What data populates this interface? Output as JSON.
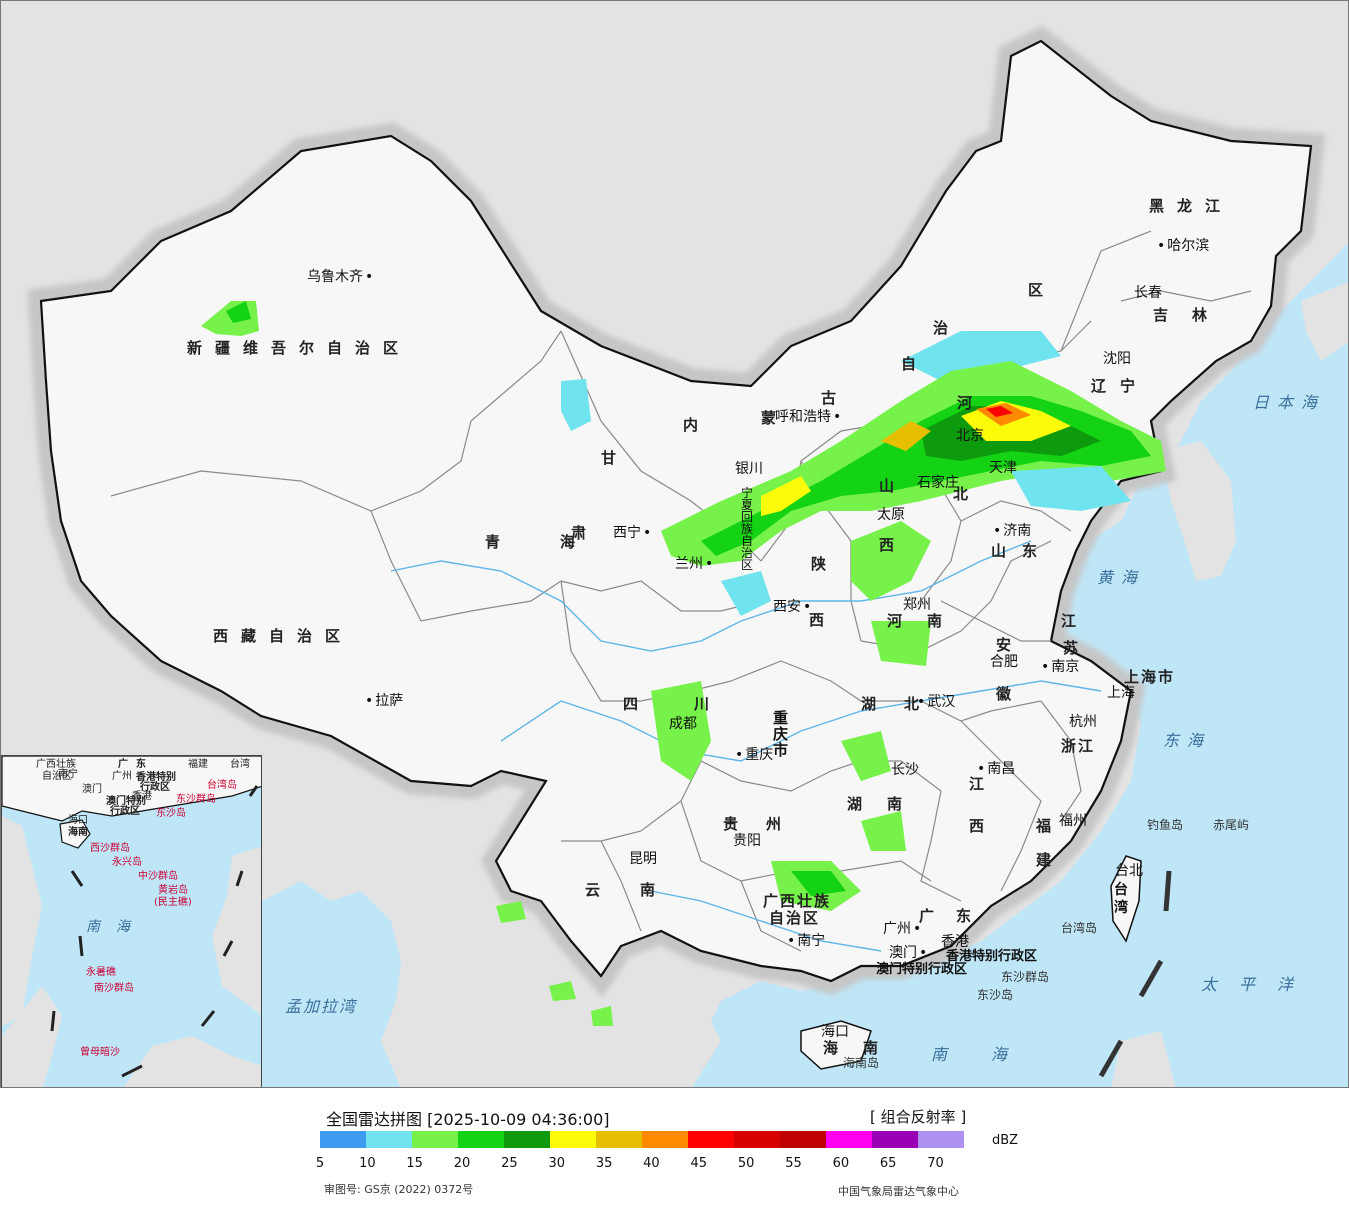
{
  "legend": {
    "title": "全国雷达拼图 [2025-10-09 04:36:00]",
    "product": "[ 组合反射率 ]",
    "unit": "dBZ",
    "approval": "审图号: GS京 (2022) 0372号",
    "credit": "中国气象局雷达气象中心",
    "ticks": [
      "5",
      "10",
      "15",
      "20",
      "25",
      "30",
      "35",
      "40",
      "45",
      "50",
      "55",
      "60",
      "65",
      "70"
    ],
    "colors": [
      "#3d9bef",
      "#6fe3ee",
      "#77f24a",
      "#14d214",
      "#0d9a0d",
      "#fcfc0a",
      "#e6c000",
      "#ff8a00",
      "#ff0000",
      "#d60000",
      "#c00000",
      "#ff00f0",
      "#9a00b4",
      "#ad90f0"
    ]
  },
  "colors": {
    "land": "#f7f7f7",
    "sea": "#bfe6f7",
    "outside": "#e3e3e3",
    "border": "#111111",
    "province": "#7f7f7f"
  },
  "provinces": {
    "xinjiang": "新疆维吾尔自治区",
    "xizang": "西藏自治区",
    "qinghai": "青海",
    "gansu": "甘",
    "su": "肃",
    "neimeng_nei": "内",
    "neimeng_meng": "蒙",
    "neimeng_gu": "古",
    "neimeng_zi": "自",
    "neimeng_zhi": "治",
    "neimeng_qu": "区",
    "heilongjiang": "黑龙江",
    "jilin": "吉林",
    "liaoning": "辽宁",
    "ningxia": "宁夏回族自治区",
    "shaanxi_shan": "陕",
    "shaanxi_xi": "西",
    "shanxi_shan": "山",
    "shanxi_xi": "西",
    "hebei_he": "河",
    "hebei_bei": "北",
    "beijing": "北京",
    "tianjin": "天津",
    "shandong": "山东",
    "henan_he": "河",
    "henan_nan": "南",
    "jiangsu_jiang": "江",
    "jiangsu_su": "苏",
    "anhui_an": "安",
    "anhui_hui": "徽",
    "shanghai": "上海市",
    "zhejiang": "浙江",
    "sichuan": "四川",
    "chongqing": "重庆市",
    "hubei": "湖北",
    "hunan_hu": "湖",
    "hunan_nan": "南",
    "jiangxi_jiang": "江",
    "jiangxi_xi": "西",
    "fujian_fu": "福",
    "fujian_jian": "建",
    "guizhou": "贵州",
    "yunnan": "云南",
    "guangxi_1": "广西壮族",
    "guangxi_2": "自治区",
    "guangdong": "广东",
    "hainan_hai": "海",
    "hainan_nan": "南",
    "hongkong": "香港特别行政区",
    "macao": "澳门特别行政区",
    "taiwan": "台湾"
  },
  "cities": {
    "urumqi": "乌鲁木齐",
    "lhasa": "拉萨",
    "xining": "西宁",
    "lanzhou": "兰州",
    "yinchuan": "银川",
    "hohhot": "呼和浩特",
    "harbin": "哈尔滨",
    "changchun": "长春",
    "shenyang": "沈阳",
    "shijiazhuang": "石家庄",
    "taiyuan": "太原",
    "jinan": "济南",
    "zhengzhou": "郑州",
    "xian": "西安",
    "hefei": "合肥",
    "nanjing": "南京",
    "shanghai": "上海",
    "hangzhou": "杭州",
    "wuhan": "武汉",
    "chengdu": "成都",
    "chongqing": "重庆",
    "changsha": "长沙",
    "nanchang": "南昌",
    "fuzhou": "福州",
    "guiyang": "贵阳",
    "kunming": "昆明",
    "nanning": "南宁",
    "guangzhou": "广州",
    "hongkong": "香港",
    "macao": "澳门",
    "haikou": "海口",
    "taipei": "台北"
  },
  "seas": {
    "japan_sea": "日本海",
    "yellow_sea": "黄海",
    "east_sea": "东海",
    "pacific": "太平洋",
    "south_sea": "南海",
    "bengal": "孟加拉湾"
  },
  "islands": {
    "diaoyu": "钓鱼岛",
    "chiwei": "赤尾屿",
    "taiwan_island": "台湾岛",
    "dongsha": "东沙群岛",
    "dongsha_dao": "东沙岛",
    "hainan_island": "海南岛"
  },
  "inset": {
    "guangxi": "广西壮族",
    "zizhiqu": "自治区",
    "nanning": "南宁",
    "guangdong": "广东",
    "fujian": "福建",
    "taiwan": "台湾",
    "guangzhou": "广州",
    "hk": "香港特别",
    "hk2": "行政区",
    "macao": "澳门特别",
    "macao2": "行政区",
    "xianggang": "香港",
    "aomen": "澳门",
    "taiwan_island": "台湾岛",
    "dongsha": "东沙群岛",
    "dongsha_dao": "东沙岛",
    "haikou": "海口",
    "hainan": "海南",
    "xisha": "西沙群岛",
    "yongxing": "永兴岛",
    "zhongsha": "中沙群岛",
    "huangyan": "黄岩岛",
    "huangyan2": "(民主礁)",
    "south_sea": "南海",
    "yongshu": "永暑礁",
    "nansha": "南沙群岛",
    "zengmu": "曾母暗沙"
  }
}
